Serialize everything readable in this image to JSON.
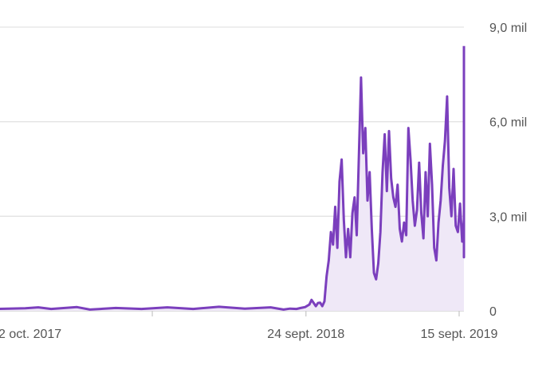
{
  "chart_data": {
    "type": "area",
    "title": "",
    "xlabel": "",
    "ylabel": "",
    "x_range": [
      "2016-10-02",
      "2019-09-28"
    ],
    "ylim": [
      0,
      9000
    ],
    "grid": true,
    "y_ticks": [
      {
        "value": 9000,
        "label": "9,0 mil"
      },
      {
        "value": 6000,
        "label": "6,0 mil"
      },
      {
        "value": 3000,
        "label": "3,0 mil"
      },
      {
        "value": 0,
        "label": "0"
      }
    ],
    "x_ticks": [
      {
        "date": "2017-10-02",
        "label": "2 oct. 2017"
      },
      {
        "date": "2018-09-24",
        "label": "24 sept. 2018"
      },
      {
        "date": "2019-09-15",
        "label": "15 sept. 2019"
      }
    ],
    "series": [
      {
        "color": "#7b3fbd",
        "fill": "#efe8f7",
        "points": [
          [
            "2016-10-02",
            60
          ],
          [
            "2016-12-11",
            80
          ],
          [
            "2017-01-10",
            110
          ],
          [
            "2017-02-09",
            60
          ],
          [
            "2017-04-10",
            120
          ],
          [
            "2017-05-10",
            40
          ],
          [
            "2017-07-09",
            90
          ],
          [
            "2017-09-07",
            60
          ],
          [
            "2017-11-06",
            110
          ],
          [
            "2018-01-05",
            60
          ],
          [
            "2018-03-06",
            130
          ],
          [
            "2018-05-05",
            70
          ],
          [
            "2018-07-04",
            110
          ],
          [
            "2018-08-03",
            40
          ],
          [
            "2018-08-18",
            70
          ],
          [
            "2018-09-02",
            60
          ],
          [
            "2018-09-12",
            90
          ],
          [
            "2018-09-22",
            120
          ],
          [
            "2018-10-02",
            200
          ],
          [
            "2018-10-07",
            350
          ],
          [
            "2018-10-12",
            250
          ],
          [
            "2018-10-17",
            150
          ],
          [
            "2018-10-22",
            250
          ],
          [
            "2018-10-27",
            260
          ],
          [
            "2018-11-01",
            150
          ],
          [
            "2018-11-06",
            300
          ],
          [
            "2018-11-11",
            1100
          ],
          [
            "2018-11-16",
            1600
          ],
          [
            "2018-11-21",
            2500
          ],
          [
            "2018-11-26",
            2100
          ],
          [
            "2018-12-01",
            3300
          ],
          [
            "2018-12-06",
            2000
          ],
          [
            "2018-12-11",
            4100
          ],
          [
            "2018-12-16",
            4800
          ],
          [
            "2018-12-21",
            2900
          ],
          [
            "2018-12-26",
            1700
          ],
          [
            "2018-12-31",
            2600
          ],
          [
            "2019-01-05",
            1700
          ],
          [
            "2019-01-10",
            3100
          ],
          [
            "2019-01-15",
            3600
          ],
          [
            "2019-01-20",
            2400
          ],
          [
            "2019-01-25",
            4900
          ],
          [
            "2019-01-30",
            7400
          ],
          [
            "2019-02-04",
            5000
          ],
          [
            "2019-02-09",
            5800
          ],
          [
            "2019-02-14",
            3500
          ],
          [
            "2019-02-19",
            4400
          ],
          [
            "2019-02-24",
            2600
          ],
          [
            "2019-03-01",
            1200
          ],
          [
            "2019-03-06",
            1000
          ],
          [
            "2019-03-11",
            1500
          ],
          [
            "2019-03-16",
            2500
          ],
          [
            "2019-03-21",
            4400
          ],
          [
            "2019-03-26",
            5600
          ],
          [
            "2019-03-31",
            3800
          ],
          [
            "2019-04-05",
            5700
          ],
          [
            "2019-04-10",
            4200
          ],
          [
            "2019-04-15",
            3600
          ],
          [
            "2019-04-20",
            3300
          ],
          [
            "2019-04-25",
            4000
          ],
          [
            "2019-04-30",
            2600
          ],
          [
            "2019-05-05",
            2200
          ],
          [
            "2019-05-10",
            2800
          ],
          [
            "2019-05-15",
            2400
          ],
          [
            "2019-05-20",
            5800
          ],
          [
            "2019-05-25",
            4800
          ],
          [
            "2019-05-30",
            3500
          ],
          [
            "2019-06-04",
            2700
          ],
          [
            "2019-06-09",
            3200
          ],
          [
            "2019-06-14",
            4700
          ],
          [
            "2019-06-19",
            3100
          ],
          [
            "2019-06-24",
            2300
          ],
          [
            "2019-06-29",
            4400
          ],
          [
            "2019-07-04",
            3000
          ],
          [
            "2019-07-09",
            5300
          ],
          [
            "2019-07-14",
            4000
          ],
          [
            "2019-07-19",
            2000
          ],
          [
            "2019-07-24",
            1600
          ],
          [
            "2019-07-29",
            2800
          ],
          [
            "2019-08-03",
            3500
          ],
          [
            "2019-08-08",
            4600
          ],
          [
            "2019-08-13",
            5400
          ],
          [
            "2019-08-18",
            6800
          ],
          [
            "2019-08-23",
            3900
          ],
          [
            "2019-08-28",
            3000
          ],
          [
            "2019-09-02",
            4500
          ],
          [
            "2019-09-07",
            2700
          ],
          [
            "2019-09-12",
            2500
          ],
          [
            "2019-09-17",
            3400
          ],
          [
            "2019-09-22",
            2200
          ],
          [
            "2019-09-27",
            2900
          ],
          [
            "2019-10-02",
            1800
          ],
          [
            "2019-10-07",
            2200
          ],
          [
            "2019-10-12",
            1700
          ],
          [
            "2019-10-17",
            2000
          ],
          [
            "2019-10-22",
            2700
          ],
          [
            "2019-10-27",
            2000
          ],
          [
            "2019-11-01",
            3000
          ],
          [
            "2019-11-06",
            2100
          ],
          [
            "2019-11-11",
            8400
          ]
        ]
      }
    ]
  }
}
